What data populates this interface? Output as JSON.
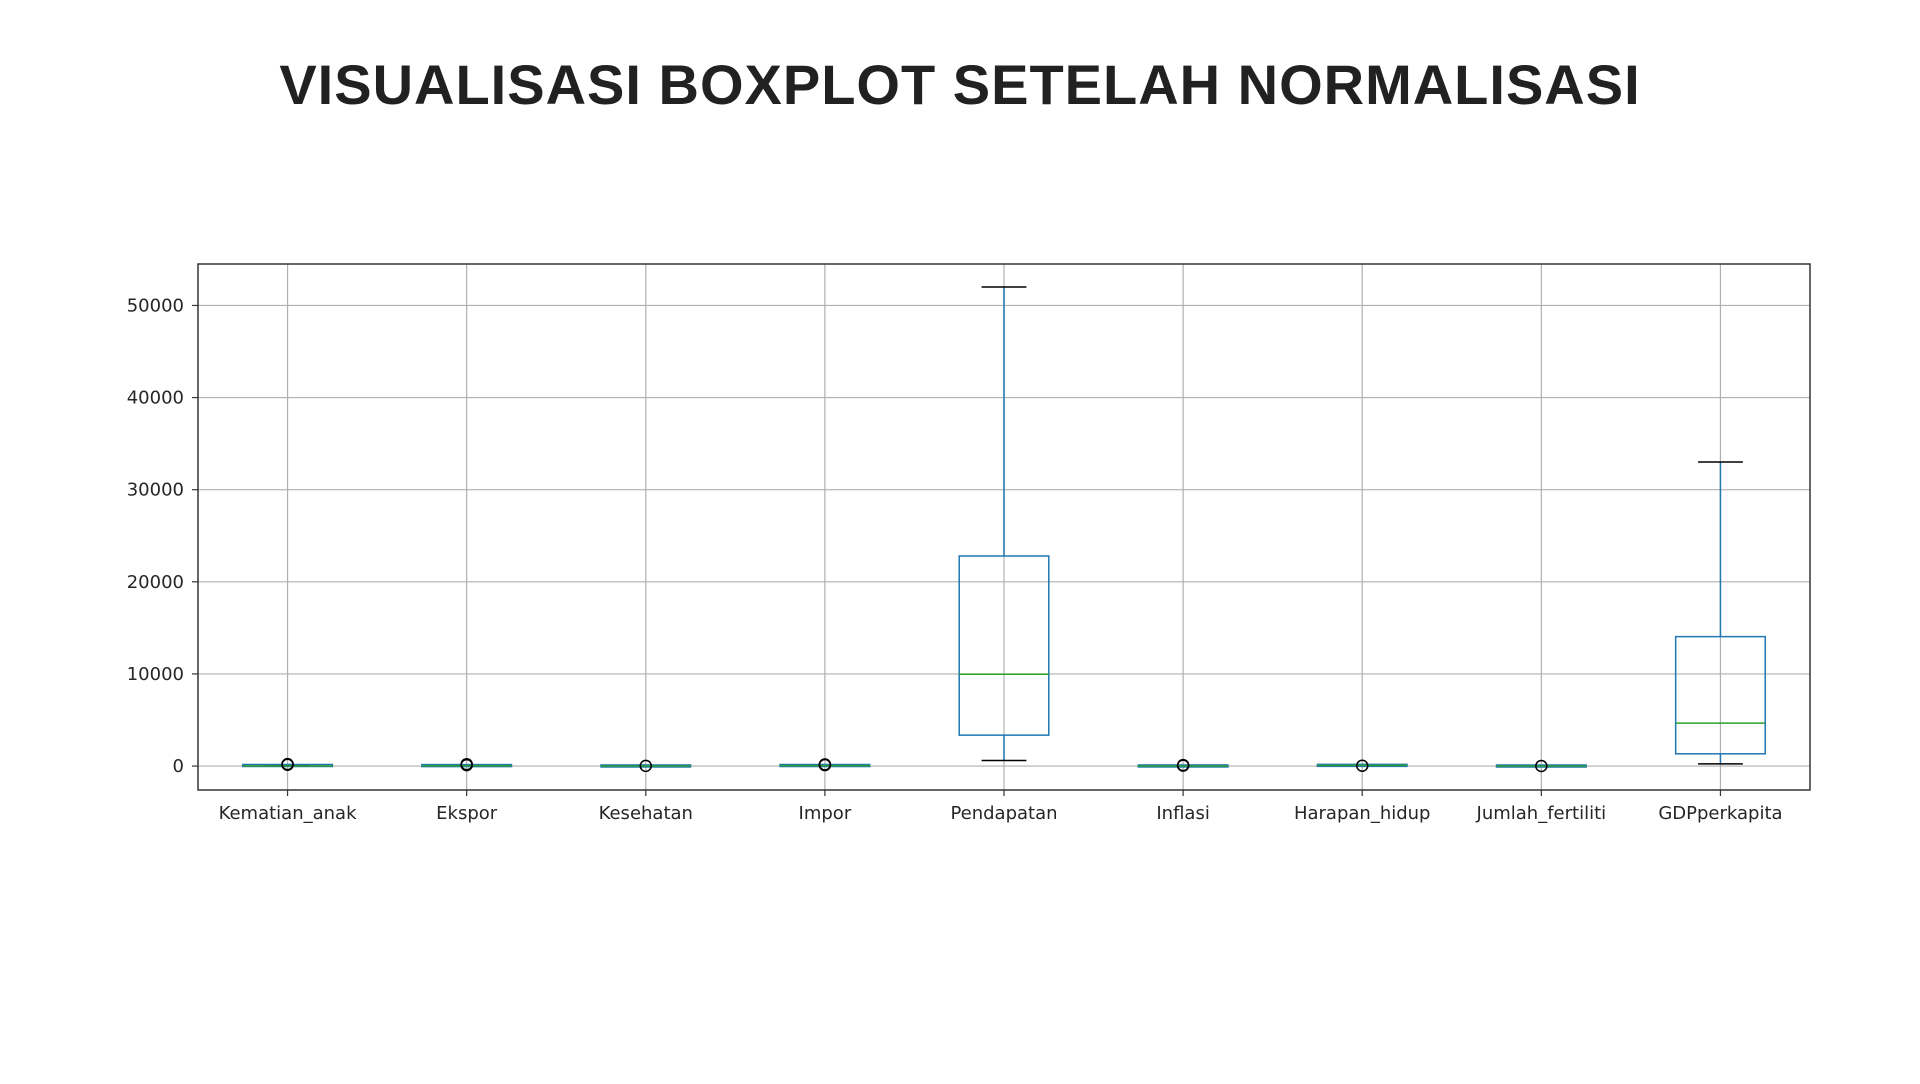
{
  "page": {
    "title": "VISUALISASI BOXPLOT SETELAH NORMALISASI"
  },
  "chart_data": {
    "type": "boxplot",
    "title": "",
    "xlabel": "",
    "ylabel": "",
    "ylim": [
      -2600,
      54500
    ],
    "yticks": [
      0,
      10000,
      20000,
      30000,
      40000,
      50000
    ],
    "grid": true,
    "colors": {
      "box": "#1f77b4",
      "median": "#2ca02c",
      "whisker": "#1f77b4",
      "cap": "#000000",
      "grid": "#b0b0b0",
      "outlier": "#000000"
    },
    "categories": [
      "Kematian_anak",
      "Ekspor",
      "Kesehatan",
      "Impor",
      "Pendapatan",
      "Inflasi",
      "Harapan_hidup",
      "Jumlah_fertiliti",
      "GDPperkapita"
    ],
    "boxes": [
      {
        "category": "Kematian_anak",
        "whislo": 3,
        "q1": 8,
        "med": 19,
        "q3": 62,
        "whishi": 142,
        "fliers": [
          150,
          160,
          208
        ]
      },
      {
        "category": "Ekspor",
        "whislo": 0.1,
        "q1": 24,
        "med": 35,
        "q3": 51,
        "whishi": 92,
        "fliers": [
          103,
          153,
          200
        ]
      },
      {
        "category": "Kesehatan",
        "whislo": 1.8,
        "q1": 4.9,
        "med": 6.3,
        "q3": 8.6,
        "whishi": 14,
        "fliers": [
          17.9
        ]
      },
      {
        "category": "Impor",
        "whislo": 0.07,
        "q1": 30,
        "med": 43,
        "q3": 59,
        "whishi": 101,
        "fliers": [
          108,
          154,
          174
        ]
      },
      {
        "category": "Pendapatan",
        "whislo": 609,
        "q1": 3355,
        "med": 9960,
        "q3": 22800,
        "whishi": 52000,
        "fliers": []
      },
      {
        "category": "Inflasi",
        "whislo": -4,
        "q1": 1.8,
        "med": 5.4,
        "q3": 10.8,
        "whishi": 24,
        "fliers": [
          45,
          104
        ]
      },
      {
        "category": "Harapan_hidup",
        "whislo": 47,
        "q1": 65,
        "med": 73,
        "q3": 76,
        "whishi": 82,
        "fliers": [
          32
        ]
      },
      {
        "category": "Jumlah_fertiliti",
        "whislo": 1.2,
        "q1": 1.8,
        "med": 2.4,
        "q3": 3.9,
        "whishi": 7.0,
        "fliers": [
          7.5
        ]
      },
      {
        "category": "GDPperkapita",
        "whislo": 231,
        "q1": 1330,
        "med": 4660,
        "q3": 14050,
        "whishi": 33000,
        "fliers": []
      }
    ]
  }
}
